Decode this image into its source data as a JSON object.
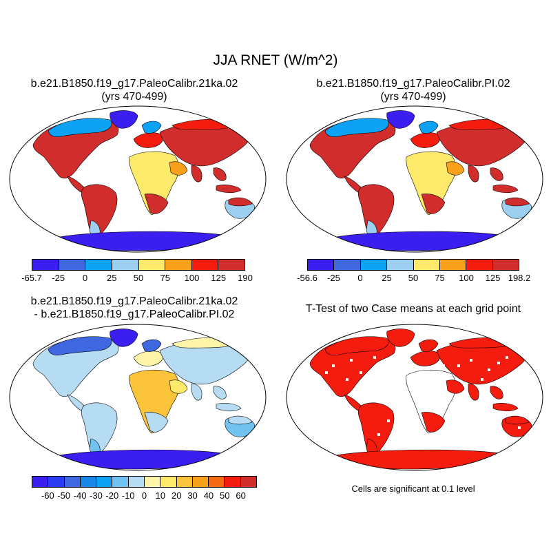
{
  "figure": {
    "title": "JJA RNET (W/m^2)"
  },
  "panels": [
    {
      "title_line1": "b.e21.B1850.f19_g17.PaleoCalibr.21ka.02",
      "title_line2": "(yrs 470-499)",
      "colorbar": {
        "labels": [
          "-65.7",
          "-25",
          "0",
          "25",
          "50",
          "75",
          "100",
          "125",
          "190"
        ],
        "colors": [
          "#3b1ff0",
          "#3f68e0",
          "#0ea2f5",
          "#9dcff0",
          "#fde96a",
          "#f9a11b",
          "#f41b0f",
          "#d22d2d"
        ]
      }
    },
    {
      "title_line1": "b.e21.B1850.f19_g17.PaleoCalibr.PI.02",
      "title_line2": "(yrs 470-499)",
      "colorbar": {
        "labels": [
          "-56.6",
          "-25",
          "0",
          "25",
          "50",
          "75",
          "100",
          "125",
          "198.2"
        ],
        "colors": [
          "#3b1ff0",
          "#3f68e0",
          "#0ea2f5",
          "#9dcff0",
          "#fde96a",
          "#f9a11b",
          "#f41b0f",
          "#d22d2d"
        ]
      }
    },
    {
      "title_line1": "b.e21.B1850.f19_g17.PaleoCalibr.21ka.02",
      "title_line2": "- b.e21.B1850.f19_g17.PaleoCalibr.PI.02",
      "colorbar": {
        "labels": [
          "-60",
          "-50",
          "-40",
          "-30",
          "-20",
          "-10",
          "0",
          "10",
          "20",
          "30",
          "40",
          "50",
          "60"
        ],
        "colors": [
          "#3b1ff0",
          "#2a3cf2",
          "#3f68e0",
          "#1787ea",
          "#0ea2f5",
          "#70c3f0",
          "#b5dcf2",
          "#fff5a8",
          "#fde96a",
          "#fbc43a",
          "#f9a11b",
          "#f66a12",
          "#f41b0f",
          "#d22d2d"
        ]
      }
    },
    {
      "title_line1": "T-Test of two Case means at each grid point",
      "note": "Cells are significant at 0.1 level"
    }
  ],
  "map_colors": {
    "ocean": "#ffffff",
    "panel1": {
      "base": "#d22d2d",
      "warm": "#f41b0f",
      "mid": "#f9a11b",
      "yellow": "#fde96a",
      "light": "#9dcff0",
      "blue": "#0ea2f5",
      "ice": "#3b1ff0"
    },
    "panel2": {
      "base": "#d22d2d",
      "warm": "#f41b0f",
      "mid": "#f9a11b",
      "yellow": "#fde96a",
      "light": "#9dcff0",
      "blue": "#0ea2f5",
      "ice": "#3b1ff0"
    },
    "panel3": {
      "base": "#b5dcf2",
      "warm": "#fff5a8",
      "mid": "#fde96a",
      "yellow": "#fbc43a",
      "light": "#70c3f0",
      "blue": "#3f68e0",
      "ice": "#3b1ff0"
    },
    "panel4": {
      "base": "#f41b0f",
      "warm": "#f41b0f",
      "mid": "#f41b0f",
      "yellow": "#ffffff",
      "light": "#f41b0f",
      "blue": "#f41b0f",
      "ice": "#f41b0f"
    }
  }
}
